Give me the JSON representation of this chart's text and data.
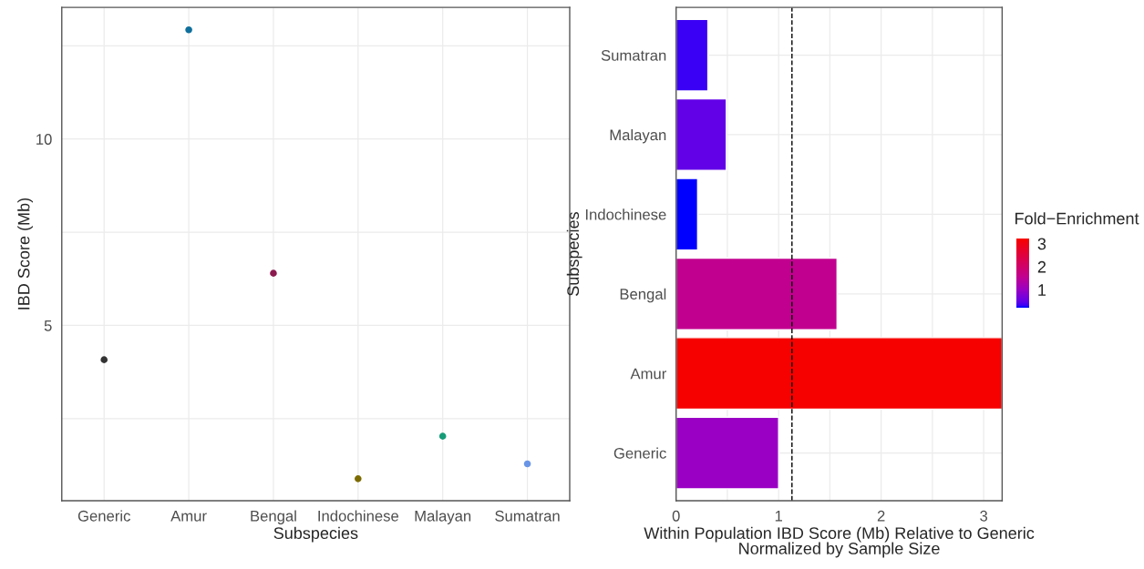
{
  "chart_data": [
    {
      "type": "scatter",
      "xlabel": "Subspecies",
      "ylabel": "IBD Score (Mb)",
      "categories": [
        "Generic",
        "Amur",
        "Bengal",
        "Indochinese",
        "Malayan",
        "Sumatran"
      ],
      "values": [
        4.08,
        12.93,
        6.4,
        0.89,
        2.03,
        1.29
      ],
      "colors": [
        "#333333",
        "#0f6f9c",
        "#8b1a4f",
        "#7c6b00",
        "#169c78",
        "#6a95e6"
      ],
      "ylim": [
        0.3,
        13.53
      ],
      "yticks": [
        {
          "value": 2.5,
          "label": null
        },
        5,
        {
          "value": 7.5,
          "label": null
        },
        10,
        {
          "value": 12.5,
          "label": null
        }
      ],
      "grid": true,
      "marker": "circle"
    },
    {
      "type": "bar",
      "orientation": "horizontal",
      "xlabel": "Within Population IBD Score (Mb) Relative to Generic\nNormalized by Sample Size",
      "ylabel": "Subspecies",
      "categories": [
        "Sumatran",
        "Malayan",
        "Indochinese",
        "Bengal",
        "Amur",
        "Generic"
      ],
      "values": [
        0.31,
        0.49,
        0.21,
        1.57,
        3.18,
        1.0
      ],
      "colors": [
        "#3a00f5",
        "#6200e8",
        "#0000ff",
        "#c2008f",
        "#f70000",
        "#9a00c4"
      ],
      "xlim": [
        0,
        3.18
      ],
      "xticks": [
        0,
        {
          "value": 0.5,
          "label": null
        },
        1,
        {
          "value": 1.5,
          "label": null
        },
        2,
        {
          "value": 2.5,
          "label": null
        },
        3
      ],
      "ref_lines": [
        {
          "axis": "x",
          "value": 1.13,
          "line_style": "dashed",
          "color": "#000000"
        }
      ],
      "clabel": "Fold−Enrichment",
      "clim": [
        0.24,
        3.2
      ],
      "cticks": [
        1,
        2,
        3
      ],
      "grid": true
    }
  ]
}
